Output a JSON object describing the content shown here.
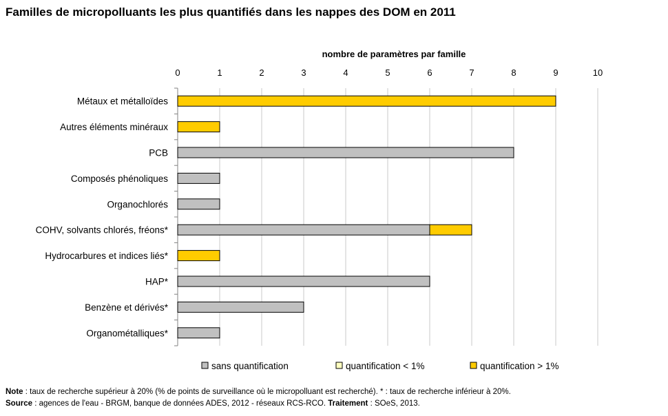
{
  "title": "Familles de micropolluants les plus quantifiés dans les nappes des DOM en 2011",
  "colors": {
    "sans_quantification": "#c0c0c0",
    "quantif_lt_1": "#ffffc0",
    "quantif_gt_1": "#ffcc00",
    "grid": "#c8c8c8",
    "bar_stroke": "#000000"
  },
  "chart_data": {
    "type": "bar",
    "orientation": "horizontal",
    "stacked": true,
    "xlabel": "nombre de paramètres par famille",
    "xlim": [
      0,
      10
    ],
    "xticks": [
      0,
      1,
      2,
      3,
      4,
      5,
      6,
      7,
      8,
      9,
      10
    ],
    "x_axis_position": "top",
    "grid": true,
    "legend_position": "bottom",
    "categories": [
      "Métaux et métalloïdes",
      "Autres éléments minéraux",
      "PCB",
      "Composés phénoliques",
      "Organochlorés",
      "COHV, solvants chlorés, fréons*",
      "Hydrocarbures et indices liés*",
      "HAP*",
      "Benzène et dérivés*",
      "Organométalliques*"
    ],
    "series": [
      {
        "name": "sans quantification",
        "color_key": "sans_quantification",
        "values": [
          0,
          0,
          8,
          1,
          1,
          6,
          0,
          6,
          3,
          1
        ]
      },
      {
        "name": "quantification < 1%",
        "color_key": "quantif_lt_1",
        "values": [
          0,
          0,
          0,
          0,
          0,
          0,
          0,
          0,
          0,
          0
        ]
      },
      {
        "name": "quantification > 1%",
        "color_key": "quantif_gt_1",
        "values": [
          9,
          1,
          0,
          0,
          0,
          1,
          1,
          0,
          0,
          0
        ]
      }
    ]
  },
  "notes": {
    "note_label": "Note",
    "note_text": " : taux de recherche supérieur à 20% (% de points de surveillance où le micropolluant est recherché). * : taux de recherche inférieur à 20%.",
    "source_label": "Source",
    "source_text": " : agences de l'eau - BRGM, banque de données ADES, 2012 - réseaux RCS-RCO. ",
    "traitement_label": "Traitement",
    "traitement_text": " : SOeS, 2013."
  }
}
